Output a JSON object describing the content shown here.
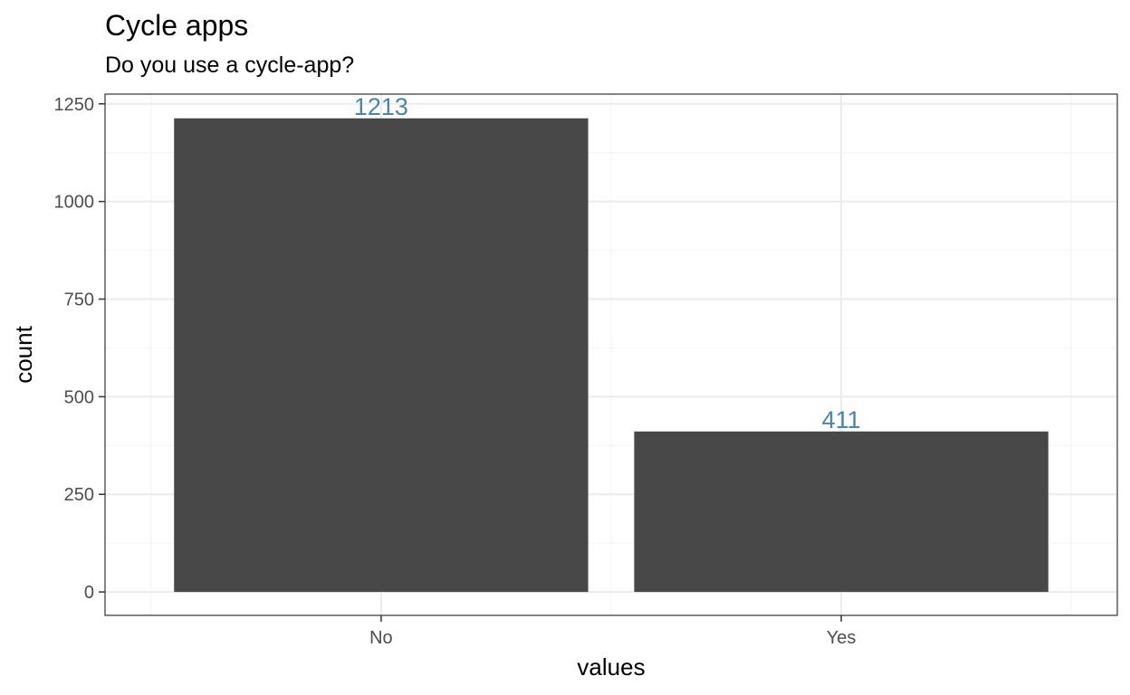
{
  "chart_data": {
    "type": "bar",
    "title": "Cycle apps",
    "subtitle": "Do you use a cycle-app?",
    "xlabel": "values",
    "ylabel": "count",
    "categories": [
      "No",
      "Yes"
    ],
    "values": [
      1213,
      411
    ],
    "data_labels": [
      "1213",
      "411"
    ],
    "yticks": [
      0,
      250,
      500,
      750,
      1000,
      1250
    ],
    "ylim": [
      -60,
      1275
    ],
    "grid": true,
    "legend": "none",
    "colors": {
      "bar": "#484848",
      "label": "#4a86a8",
      "grid_major": "#ebebeb",
      "grid_minor": "#f5f5f5",
      "border": "#333333",
      "tick": "#333333"
    }
  }
}
